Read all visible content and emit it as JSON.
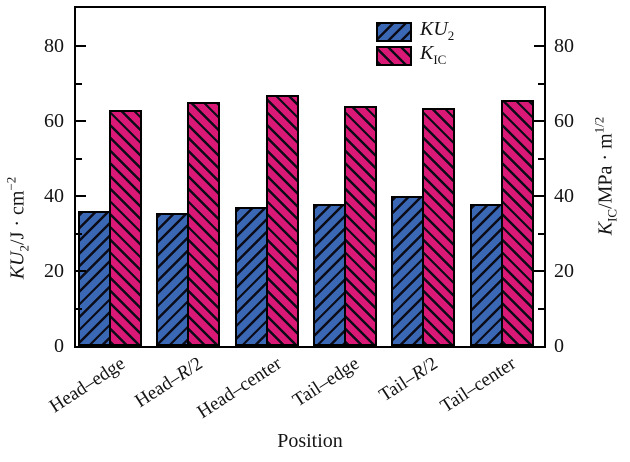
{
  "chart_data": {
    "type": "bar",
    "title": "",
    "xlabel": "Position",
    "ylabel_left": "KU2/J · cm−2",
    "ylabel_right": "KIC/MPa · m1/2",
    "categories": [
      "Head–edge",
      "Head–R/2",
      "Head–center",
      "Tail–edge",
      "Tail–R/2",
      "Tail–center"
    ],
    "series": [
      {
        "name": "KU2",
        "axis": "left",
        "color": "#3a68b4",
        "hatch": "/",
        "values": [
          36,
          35.5,
          37,
          38,
          40,
          38
        ]
      },
      {
        "name": "KIC",
        "axis": "right",
        "color": "#da1876",
        "hatch": "\\",
        "values": [
          63,
          65,
          67,
          64,
          63.5,
          65.5
        ]
      }
    ],
    "ylim": [
      0,
      90
    ],
    "yticks": [
      0,
      20,
      40,
      60,
      80
    ],
    "yticks_minor": [
      10,
      30,
      50,
      70
    ],
    "legend_position": "upper-right-inside",
    "grid": false
  },
  "axis_titles": {
    "left": {
      "italic": "KU",
      "sub": "2",
      "rest": "/J · cm",
      "sup": "−2"
    },
    "right": {
      "italic": "K",
      "sub": "IC",
      "rest": "/MPa · m",
      "sup": "1/2"
    }
  },
  "legend": {
    "items": [
      {
        "italic": "KU",
        "sub": "2"
      },
      {
        "italic": "K",
        "sub": "IC"
      }
    ]
  },
  "xcats": [
    {
      "pre": "Head–edge",
      "it": "",
      "post": ""
    },
    {
      "pre": "Head–",
      "it": "R",
      "post": "/2"
    },
    {
      "pre": "Head–center",
      "it": "",
      "post": ""
    },
    {
      "pre": "Tail–edge",
      "it": "",
      "post": ""
    },
    {
      "pre": "Tail–",
      "it": "R",
      "post": "/2"
    },
    {
      "pre": "Tail–center",
      "it": "",
      "post": ""
    }
  ],
  "colors": {
    "bar_blue": "#3a68b4",
    "bar_pink": "#da1876",
    "hatch_line": "#0c0c18",
    "frame": "#000000",
    "text": "#141414",
    "background": "#ffffff"
  }
}
